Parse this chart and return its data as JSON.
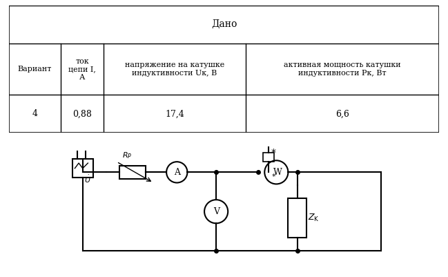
{
  "table_title": "Дано",
  "col_headers": [
    "Вариант",
    "ток\nцепи I,\nА",
    "напряжение на катушке\nиндуктивности Uк, В",
    "активная мощность катушки\nиндуктивности Pк, Вт"
  ],
  "data_row": [
    "4",
    "0,88",
    "17,4",
    "6,6"
  ],
  "bg_color": "#ffffff",
  "line_color": "#000000",
  "font_size": 9
}
